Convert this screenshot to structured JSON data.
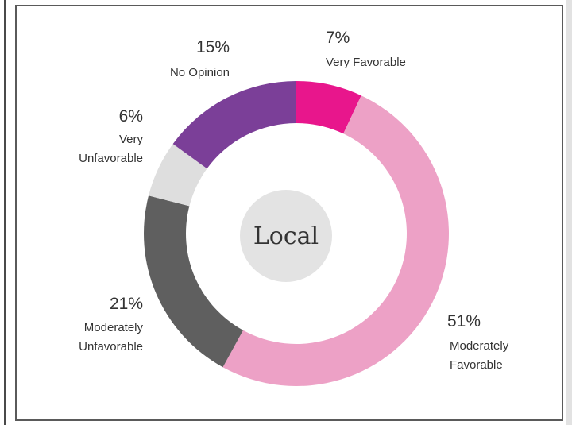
{
  "chart_data": {
    "type": "pie",
    "center_label": "Local",
    "slices": [
      {
        "value": 7,
        "pct_label": "7%",
        "label_lines": [
          "Very Favorable"
        ],
        "color": "#e8168c"
      },
      {
        "value": 51,
        "pct_label": "51%",
        "label_lines": [
          "Moderately",
          "Favorable"
        ],
        "color": "#eda1c6"
      },
      {
        "value": 21,
        "pct_label": "21%",
        "label_lines": [
          "Moderately",
          "Unfavorable"
        ],
        "color": "#5f5f5f"
      },
      {
        "value": 6,
        "pct_label": "6%",
        "label_lines": [
          "Very",
          "Unfavorable"
        ],
        "color": "#dedede"
      },
      {
        "value": 15,
        "pct_label": "15%",
        "label_lines": [
          "No Opinion"
        ],
        "color": "#7b3f98"
      }
    ]
  }
}
